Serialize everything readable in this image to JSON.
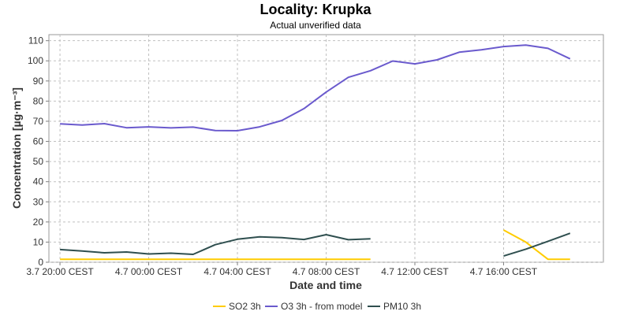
{
  "chart_data": {
    "type": "line",
    "title": "Locality: Krupka",
    "subtitle": "Actual unverified data",
    "xlabel": "Date and time",
    "ylabel": "Concentration [µg·m⁻³]",
    "ylim": [
      0,
      113
    ],
    "yticks": [
      0,
      10,
      20,
      30,
      40,
      50,
      60,
      70,
      80,
      90,
      100,
      110
    ],
    "xlim": [
      "3.7 19:30",
      "4.7 20:30"
    ],
    "xticks": [
      {
        "time": "3.7 20:00",
        "label": "3.7 20:00 CEST"
      },
      {
        "time": "4.7 00:00",
        "label": "4.7 00:00 CEST"
      },
      {
        "time": "4.7 04:00",
        "label": "4.7 04:00 CEST"
      },
      {
        "time": "4.7 08:00",
        "label": "4.7 08:00 CEST"
      },
      {
        "time": "4.7 12:00",
        "label": "4.7 12:00 CEST"
      },
      {
        "time": "4.7 16:00",
        "label": "4.7 16:00 CEST"
      }
    ],
    "grid": true,
    "legend_position": "bottom",
    "series": [
      {
        "name": "SO2 3h",
        "color": "#ffcc00",
        "points": [
          [
            "3.7 20:00",
            1.5
          ],
          [
            "3.7 21:00",
            1.5
          ],
          [
            "3.7 22:00",
            1.5
          ],
          [
            "3.7 23:00",
            1.5
          ],
          [
            "4.7 00:00",
            1.5
          ],
          [
            "4.7 01:00",
            1.5
          ],
          [
            "4.7 02:00",
            1.5
          ],
          [
            "4.7 03:00",
            1.5
          ],
          [
            "4.7 04:00",
            1.5
          ],
          [
            "4.7 05:00",
            1.5
          ],
          [
            "4.7 06:00",
            1.5
          ],
          [
            "4.7 07:00",
            1.5
          ],
          [
            "4.7 08:00",
            1.5
          ],
          [
            "4.7 09:00",
            1.5
          ],
          [
            "4.7 10:00",
            1.5
          ],
          null,
          [
            "4.7 16:00",
            16
          ],
          [
            "4.7 17:00",
            10
          ],
          [
            "4.7 18:00",
            1.5
          ],
          [
            "4.7 19:00",
            1.5
          ]
        ]
      },
      {
        "name": "O3 3h - from model",
        "color": "#6a5acd",
        "points": [
          [
            "3.7 20:00",
            68.7
          ],
          [
            "3.7 21:00",
            68.1
          ],
          [
            "3.7 22:00",
            68.8
          ],
          [
            "3.7 23:00",
            66.8
          ],
          [
            "4.7 00:00",
            67.2
          ],
          [
            "4.7 01:00",
            66.7
          ],
          [
            "4.7 02:00",
            67.1
          ],
          [
            "4.7 03:00",
            65.4
          ],
          [
            "4.7 04:00",
            65.3
          ],
          [
            "4.7 05:00",
            67.2
          ],
          [
            "4.7 06:00",
            70.4
          ],
          [
            "4.7 07:00",
            76.3
          ],
          [
            "4.7 08:00",
            84.5
          ],
          [
            "4.7 09:00",
            91.8
          ],
          [
            "4.7 10:00",
            95.1
          ],
          [
            "4.7 11:00",
            99.9
          ],
          [
            "4.7 12:00",
            98.5
          ],
          [
            "4.7 13:00",
            100.5
          ],
          [
            "4.7 14:00",
            104.3
          ],
          [
            "4.7 15:00",
            105.5
          ],
          [
            "4.7 16:00",
            107.1
          ],
          [
            "4.7 17:00",
            107.8
          ],
          [
            "4.7 18:00",
            106.2
          ],
          [
            "4.7 19:00",
            101.0
          ]
        ]
      },
      {
        "name": "PM10 3h",
        "color": "#2f4f4f",
        "points": [
          [
            "3.7 20:00",
            6.3
          ],
          [
            "3.7 21:00",
            5.6
          ],
          [
            "3.7 22:00",
            4.7
          ],
          [
            "3.7 23:00",
            5.1
          ],
          [
            "4.7 00:00",
            4.1
          ],
          [
            "4.7 01:00",
            4.5
          ],
          [
            "4.7 02:00",
            3.9
          ],
          [
            "4.7 03:00",
            8.7
          ],
          [
            "4.7 04:00",
            11.4
          ],
          [
            "4.7 05:00",
            12.6
          ],
          [
            "4.7 06:00",
            12.2
          ],
          [
            "4.7 07:00",
            11.3
          ],
          [
            "4.7 08:00",
            13.7
          ],
          [
            "4.7 09:00",
            11.2
          ],
          [
            "4.7 10:00",
            11.6
          ],
          null,
          [
            "4.7 16:00",
            3.1
          ],
          [
            "4.7 17:00",
            6.5
          ],
          [
            "4.7 18:00",
            10.4
          ],
          [
            "4.7 19:00",
            14.4
          ]
        ]
      }
    ]
  }
}
